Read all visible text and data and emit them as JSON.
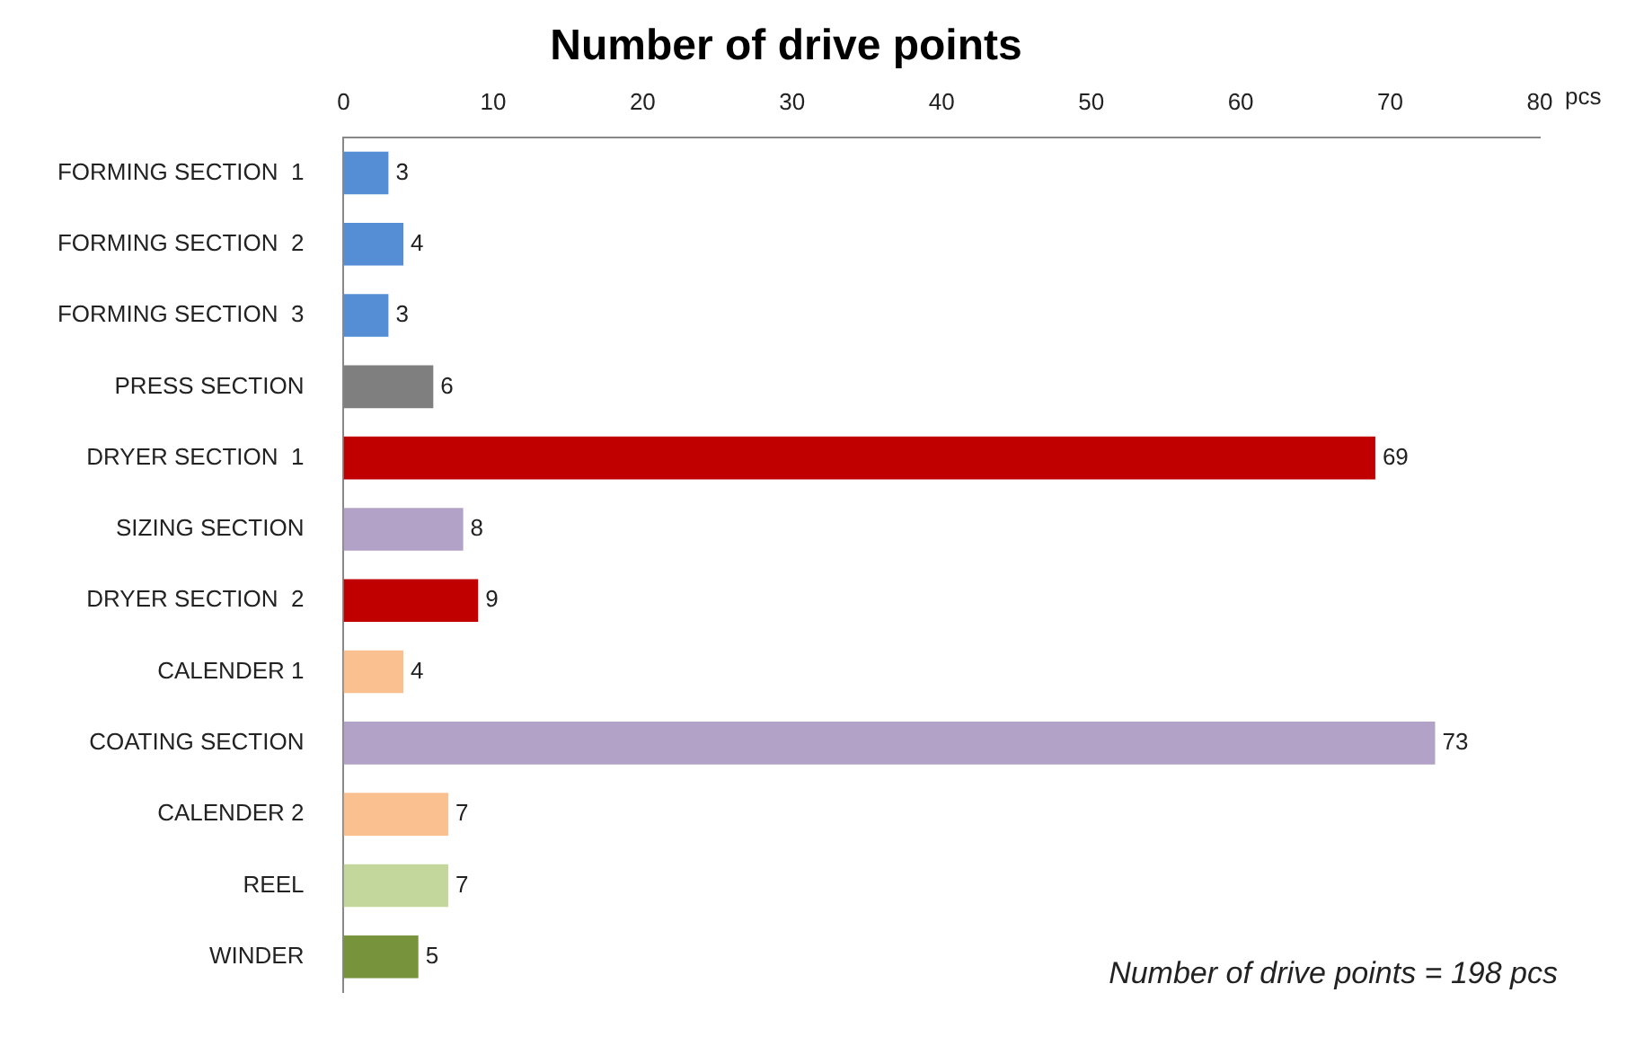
{
  "chart_data": {
    "type": "bar",
    "orientation": "horizontal",
    "title": "Number of drive points",
    "xlabel": "pcs",
    "categories": [
      "FORMING SECTION  1",
      "FORMING SECTION  2",
      "FORMING SECTION  3",
      "PRESS SECTION",
      "DRYER SECTION  1",
      "SIZING SECTION",
      "DRYER SECTION  2",
      "CALENDER 1",
      "COATING SECTION",
      "CALENDER 2",
      "REEL",
      "WINDER"
    ],
    "values": [
      3,
      4,
      3,
      6,
      69,
      8,
      9,
      4,
      73,
      7,
      7,
      5
    ],
    "colors": [
      "#558ed5",
      "#558ed5",
      "#558ed5",
      "#7f7f7f",
      "#c00000",
      "#b3a2c7",
      "#c00000",
      "#fac090",
      "#b3a2c7",
      "#fac090",
      "#c3d69b",
      "#77933c"
    ],
    "xlim": [
      0,
      80
    ],
    "xticks": [
      0,
      10,
      20,
      30,
      40,
      50,
      60,
      70,
      80
    ],
    "data_labels": true,
    "grid": false,
    "legend": false,
    "annotations": [
      "Number of drive points = 198 pcs"
    ]
  }
}
